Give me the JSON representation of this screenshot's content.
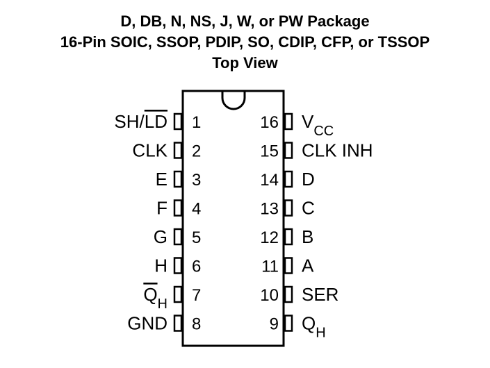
{
  "title": {
    "line1": "D, DB, N, NS, J, W, or PW Package",
    "line2": "16-Pin SOIC, SSOP, PDIP, SO, CDIP, CFP, or TSSOP",
    "line3": "Top View"
  },
  "pins_left": [
    {
      "number": "1",
      "name": "SH/",
      "name_over": "LD",
      "name_sub": ""
    },
    {
      "number": "2",
      "name": "CLK",
      "name_over": "",
      "name_sub": ""
    },
    {
      "number": "3",
      "name": "E",
      "name_over": "",
      "name_sub": ""
    },
    {
      "number": "4",
      "name": "F",
      "name_over": "",
      "name_sub": ""
    },
    {
      "number": "5",
      "name": "G",
      "name_over": "",
      "name_sub": ""
    },
    {
      "number": "6",
      "name": "H",
      "name_over": "",
      "name_sub": ""
    },
    {
      "number": "7",
      "name": "",
      "name_over": "Q",
      "name_sub": "H"
    },
    {
      "number": "8",
      "name": "GND",
      "name_over": "",
      "name_sub": ""
    }
  ],
  "pins_right": [
    {
      "number": "16",
      "name": "V",
      "name_sub": "CC"
    },
    {
      "number": "15",
      "name": "CLK INH",
      "name_sub": ""
    },
    {
      "number": "14",
      "name": "D",
      "name_sub": ""
    },
    {
      "number": "13",
      "name": "C",
      "name_sub": ""
    },
    {
      "number": "12",
      "name": "B",
      "name_sub": ""
    },
    {
      "number": "11",
      "name": "A",
      "name_sub": ""
    },
    {
      "number": "10",
      "name": "SER",
      "name_sub": ""
    },
    {
      "number": "9",
      "name": "Q",
      "name_sub": "H"
    }
  ]
}
